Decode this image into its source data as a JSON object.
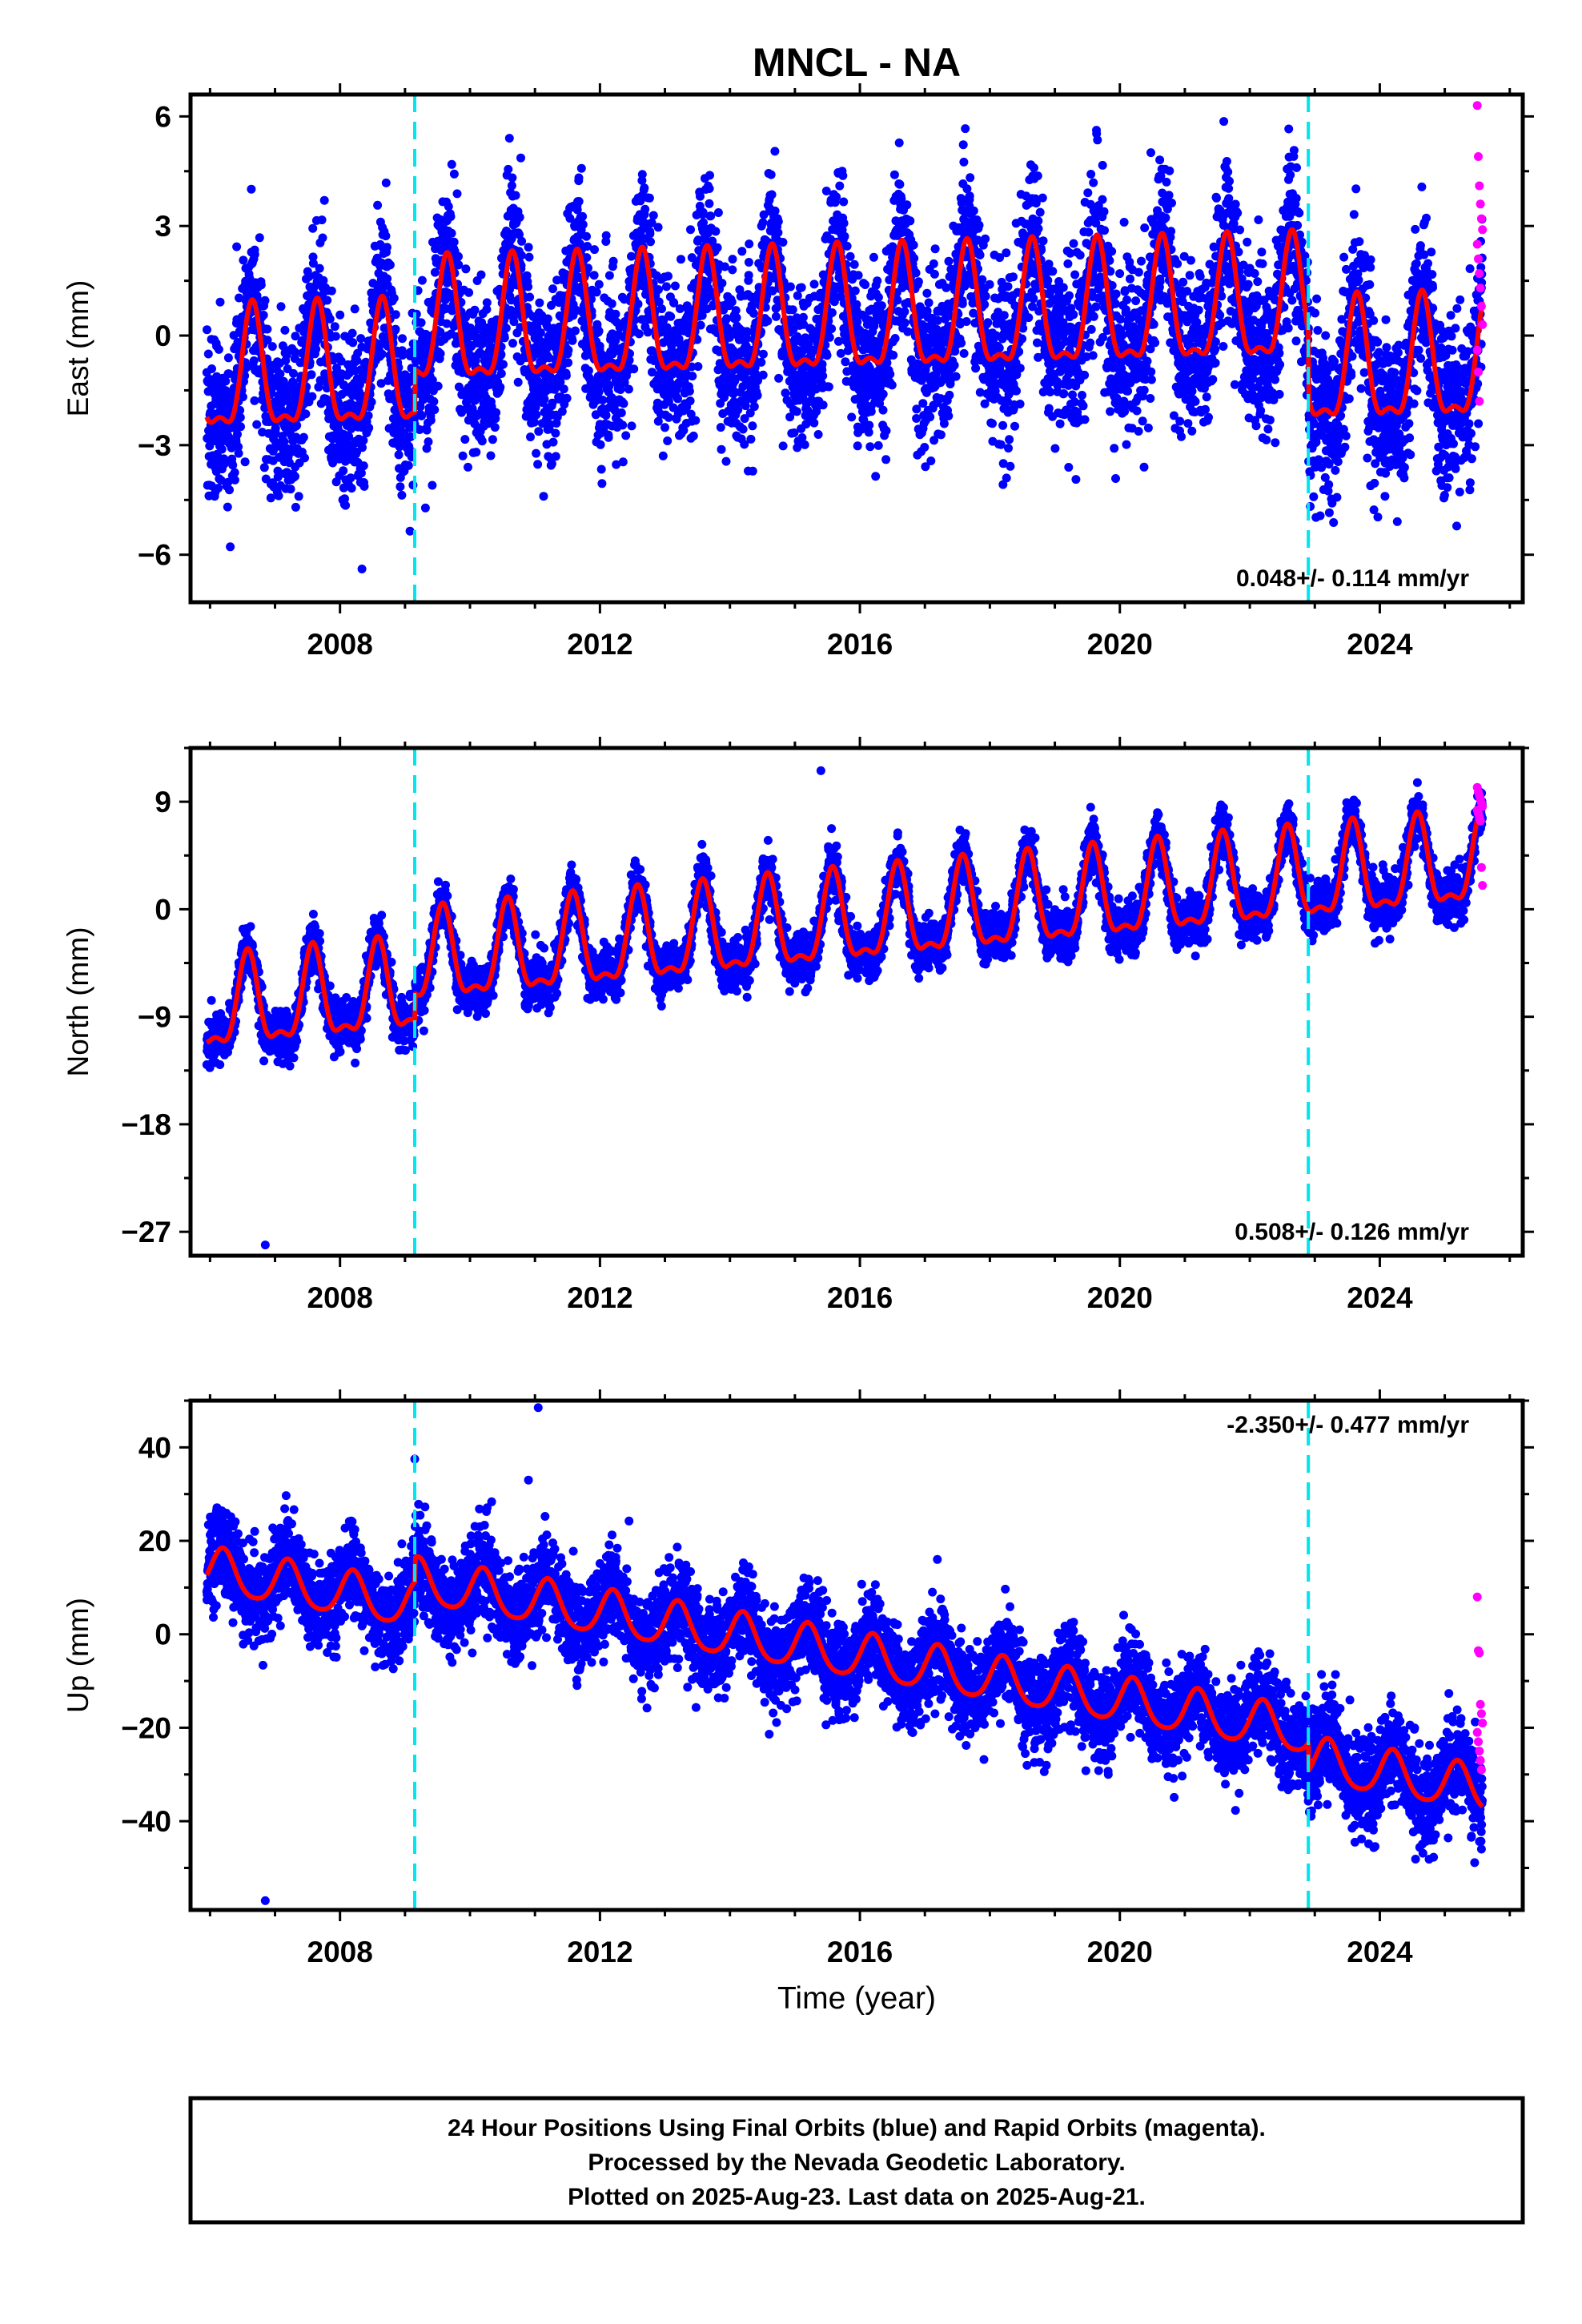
{
  "title": "MNCL - NA",
  "xlabel": "Time (year)",
  "footer": [
    "24 Hour Positions Using Final Orbits (blue) and Rapid Orbits (magenta).",
    "Processed by the Nevada Geodetic Laboratory.",
    "Plotted on 2025-Aug-23. Last data on 2025-Aug-21."
  ],
  "colors": {
    "final": "#0000ff",
    "rapid": "#ff00ff",
    "model": "#ff0000",
    "steps": "#00e5ee"
  },
  "chart_data": [
    {
      "type": "scatter",
      "name": "east",
      "ylabel": "East (mm)",
      "xlim": [
        2005.7,
        2026.2
      ],
      "ylim": [
        -7.3,
        6.6
      ],
      "xticks": [
        2008,
        2012,
        2016,
        2020,
        2024
      ],
      "yticks": [
        6,
        3,
        0,
        -3,
        -6
      ],
      "ytick_labels": [
        "6",
        "3",
        "0",
        "−3",
        "−6"
      ],
      "steps": [
        2009.15,
        2022.9
      ],
      "rate": "0.048+/- 0.114 mm/yr",
      "rate_position": "bottom-right",
      "start": 2005.95,
      "end": 2025.58,
      "trend": {
        "t0": 2005.95,
        "y0": -1.25,
        "rate": 0.048,
        "offsets": [
          {
            "t": 2009.15,
            "dy": 1.15
          },
          {
            "t": 2022.9,
            "dy": -1.75
          }
        ]
      },
      "season": {
        "a1": 1.6,
        "a2": 0.6,
        "phase_peak": 0.65
      },
      "scatter_sd": 1.1,
      "rapid": [
        6.3,
        4.9,
        4.1,
        3.6,
        3.2,
        2.9,
        2.5,
        2.1,
        1.7,
        1.3,
        0.8,
        0.3,
        -0.4,
        -1.0,
        -1.8
      ]
    },
    {
      "type": "scatter",
      "name": "north",
      "ylabel": "North (mm)",
      "xlim": [
        2005.7,
        2026.2
      ],
      "ylim": [
        -29.0,
        13.5
      ],
      "xticks": [
        2008,
        2012,
        2016,
        2020,
        2024
      ],
      "yticks": [
        9,
        0,
        -9,
        -18,
        -27
      ],
      "ytick_labels": [
        "9",
        "0",
        "−9",
        "−18",
        "−27"
      ],
      "steps": [
        2009.15,
        2022.9
      ],
      "rate": "0.508+/- 0.126 mm/yr",
      "rate_position": "bottom-right",
      "start": 2005.95,
      "end": 2025.58,
      "trend": {
        "t0": 2005.95,
        "y0": -8.6,
        "rate": 0.508,
        "offsets": [
          {
            "t": 2009.15,
            "dy": 2.3
          },
          {
            "t": 2022.9,
            "dy": 0.0
          }
        ]
      },
      "season": {
        "a1": 3.6,
        "a2": 1.4,
        "phase_peak": 0.58
      },
      "scatter_sd": 1.0,
      "rapid": [
        10.2,
        9.8,
        9.5,
        9.2,
        8.9,
        8.6,
        8.3,
        8.0,
        7.7,
        7.4,
        3.5,
        2.0
      ],
      "outliers": [
        {
          "x": 2006.85,
          "y": -28.1
        },
        {
          "x": 2015.4,
          "y": 11.6
        }
      ]
    },
    {
      "type": "scatter",
      "name": "up",
      "ylabel": "Up (mm)",
      "xlim": [
        2005.7,
        2026.2
      ],
      "ylim": [
        -59.0,
        50.0
      ],
      "xticks": [
        2008,
        2012,
        2016,
        2020,
        2024
      ],
      "yticks": [
        40,
        20,
        0,
        -20,
        -40
      ],
      "ytick_labels": [
        "40",
        "20",
        "0",
        "−20",
        "−40"
      ],
      "steps": [
        2009.15,
        2022.9
      ],
      "rate": "-2.350+/- 0.477 mm/yr",
      "rate_position": "top-right",
      "start": 2005.95,
      "end": 2025.58,
      "trend": {
        "t0": 2005.95,
        "y0": 13.5,
        "rate": -2.35,
        "offsets": [
          {
            "t": 2009.15,
            "dy": 5.2
          },
          {
            "t": 2022.9,
            "dy": -6.0
          }
        ]
      },
      "season": {
        "a1": 4.8,
        "a2": 0.8,
        "phase_peak": 0.2
      },
      "scatter_sd": 4.8,
      "rapid": [
        8.0,
        -3.5,
        -4.0,
        -15.0,
        -17.0,
        -19.0,
        -21.0,
        -23.0,
        -25.0,
        -27.0,
        -29.0
      ],
      "outliers": [
        {
          "x": 2006.85,
          "y": -57.0
        },
        {
          "x": 2011.05,
          "y": 48.5
        },
        {
          "x": 2009.15,
          "y": 37.5
        },
        {
          "x": 2010.9,
          "y": 33.0
        }
      ]
    }
  ]
}
